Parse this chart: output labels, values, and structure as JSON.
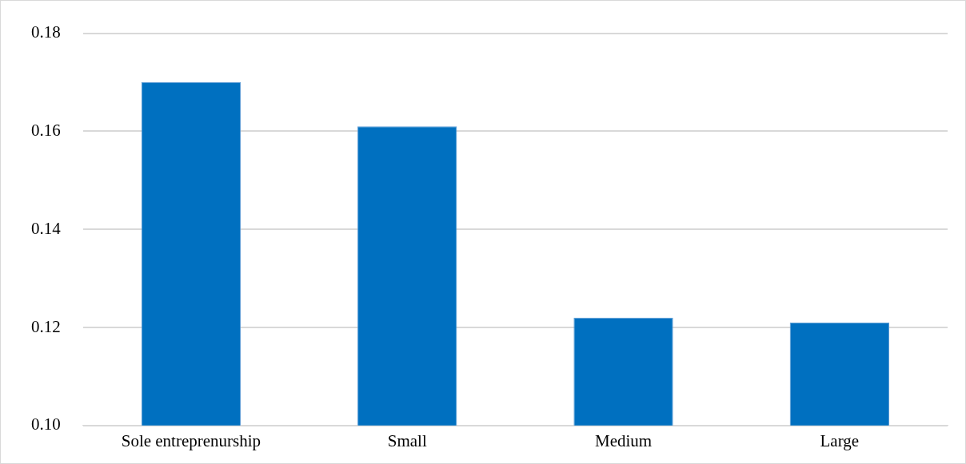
{
  "chart_data": {
    "type": "bar",
    "categories": [
      "Sole entreprenurship",
      "Small",
      "Medium",
      "Large"
    ],
    "values": [
      0.17,
      0.161,
      0.122,
      0.121
    ],
    "color": "#0070c0",
    "ylim": [
      0.1,
      0.18
    ],
    "yticks": [
      {
        "value": 0.1,
        "label": "0.10"
      },
      {
        "value": 0.12,
        "label": "0.12"
      },
      {
        "value": 0.14,
        "label": "0.14"
      },
      {
        "value": 0.16,
        "label": "0.16"
      },
      {
        "value": 0.18,
        "label": "0.18"
      }
    ],
    "grid": "y",
    "legend": false
  }
}
